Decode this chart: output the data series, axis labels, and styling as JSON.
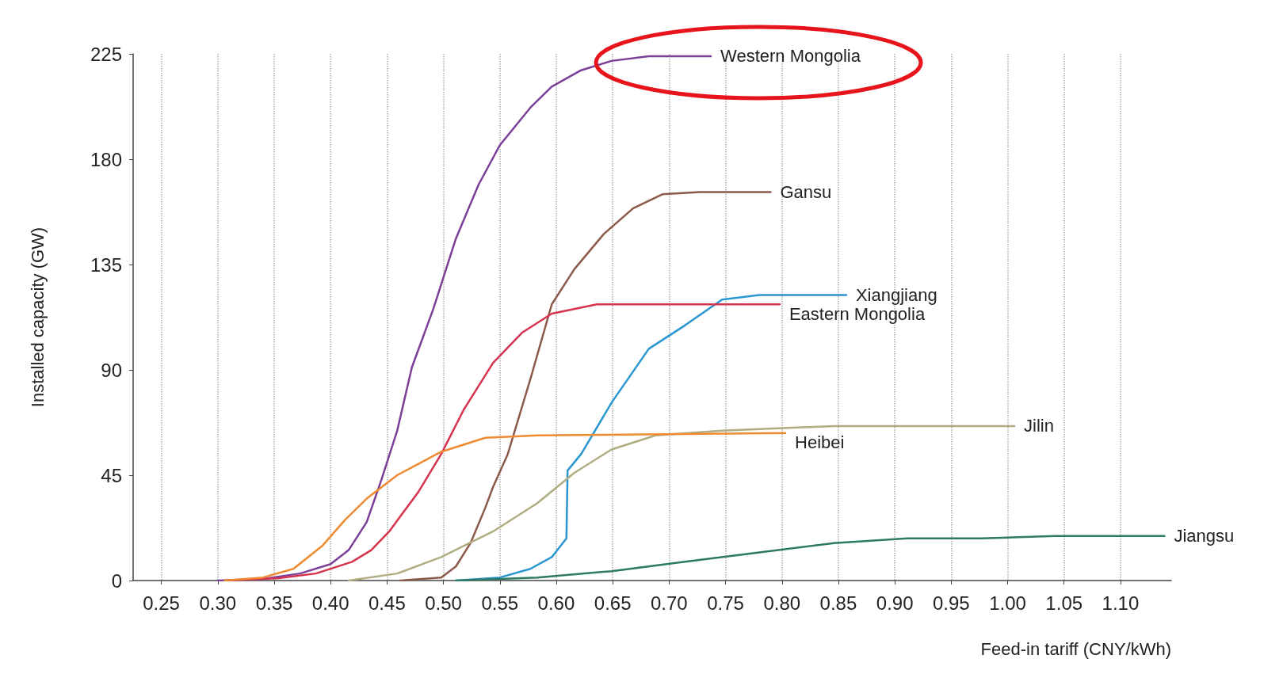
{
  "chart_data": {
    "type": "line",
    "xlabel": "Feed-in tariff (CNY/kWh)",
    "ylabel": "Installed capacity (GW)",
    "xlim": [
      0.225,
      1.145
    ],
    "ylim": [
      0,
      225
    ],
    "xticks": [
      {
        "value": 0.25,
        "label": "0.25"
      },
      {
        "value": 0.3,
        "label": "0.30"
      },
      {
        "value": 0.35,
        "label": "0.35"
      },
      {
        "value": 0.4,
        "label": "0.40"
      },
      {
        "value": 0.45,
        "label": "0.45"
      },
      {
        "value": 0.5,
        "label": "0.50"
      },
      {
        "value": 0.55,
        "label": "0.55"
      },
      {
        "value": 0.6,
        "label": "0.60"
      },
      {
        "value": 0.65,
        "label": "0.65"
      },
      {
        "value": 0.7,
        "label": "0.70"
      },
      {
        "value": 0.75,
        "label": "0.75"
      },
      {
        "value": 0.8,
        "label": "0.80"
      },
      {
        "value": 0.85,
        "label": "0.85"
      },
      {
        "value": 0.9,
        "label": "0.90"
      },
      {
        "value": 0.95,
        "label": "0.95"
      },
      {
        "value": 1.0,
        "label": "1.00"
      },
      {
        "value": 1.05,
        "label": "1.05"
      },
      {
        "value": 1.1,
        "label": "1.10"
      }
    ],
    "yticks": [
      0,
      45,
      90,
      135,
      180,
      225
    ],
    "grid": "x",
    "marker": "none",
    "line_style": "solid",
    "series": [
      {
        "name": "Western Mongolia",
        "color": "#7b3f98",
        "x": [
          0.3,
          0.34,
          0.373,
          0.4,
          0.416,
          0.432,
          0.445,
          0.459,
          0.472,
          0.491,
          0.511,
          0.531,
          0.55,
          0.577,
          0.596,
          0.622,
          0.649,
          0.682,
          0.737
        ],
        "values": [
          0,
          0.7,
          3,
          7,
          13,
          25,
          43,
          64,
          91,
          116,
          146,
          169,
          186,
          202,
          211,
          218,
          222,
          224,
          224
        ]
      },
      {
        "name": "Gansu",
        "color": "#8b5a4a",
        "x": [
          0.462,
          0.498,
          0.511,
          0.524,
          0.537,
          0.544,
          0.557,
          0.577,
          0.596,
          0.616,
          0.642,
          0.668,
          0.694,
          0.727,
          0.79
        ],
        "values": [
          0,
          1.3,
          6,
          16,
          31,
          40,
          54,
          86,
          118,
          133,
          148,
          159,
          165,
          166,
          166
        ]
      },
      {
        "name": "Xiangjiang",
        "color": "#2a96d0",
        "x": [
          0.511,
          0.55,
          0.577,
          0.596,
          0.609,
          0.61,
          0.622,
          0.649,
          0.682,
          0.714,
          0.747,
          0.78,
          0.857
        ],
        "values": [
          0,
          1.3,
          5,
          10,
          18,
          47,
          54,
          76,
          99,
          109,
          120,
          122,
          122
        ]
      },
      {
        "name": "Eastern Mongolia",
        "color": "#d6334f",
        "x": [
          0.308,
          0.354,
          0.387,
          0.419,
          0.436,
          0.452,
          0.478,
          0.498,
          0.518,
          0.544,
          0.57,
          0.596,
          0.636,
          0.798
        ],
        "values": [
          0,
          1,
          3,
          8,
          13,
          21,
          38,
          54,
          73,
          93,
          106,
          114,
          118,
          118
        ]
      },
      {
        "name": "Jilin",
        "color": "#b0ad82",
        "x": [
          0.416,
          0.459,
          0.498,
          0.544,
          0.583,
          0.616,
          0.649,
          0.688,
          0.747,
          0.846,
          0.911,
          1.006
        ],
        "values": [
          0,
          3,
          10,
          21,
          33,
          46,
          56,
          62,
          64,
          66,
          66,
          66
        ]
      },
      {
        "name": "Heibei",
        "color": "#f08a30",
        "x": [
          0.306,
          0.34,
          0.367,
          0.393,
          0.413,
          0.432,
          0.459,
          0.498,
          0.537,
          0.583,
          0.803
        ],
        "values": [
          0,
          1.3,
          5,
          15,
          26,
          35,
          45,
          55,
          61,
          62,
          63
        ]
      },
      {
        "name": "Jiangsu",
        "color": "#2e7a64",
        "x": [
          0.511,
          0.583,
          0.649,
          0.714,
          0.78,
          0.846,
          0.911,
          0.977,
          1.042,
          1.139
        ],
        "values": [
          0,
          1.3,
          4,
          8,
          12,
          16,
          18,
          18,
          19,
          19
        ]
      }
    ]
  }
}
